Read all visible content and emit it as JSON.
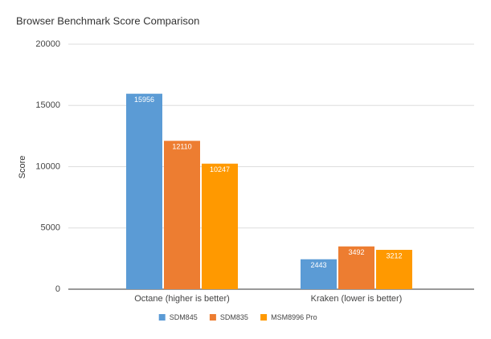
{
  "chart_data": {
    "type": "bar",
    "title": "Browser Benchmark Score Comparison",
    "y_label": "Score",
    "categories": [
      "Octane (higher is better)",
      "Kraken (lower is better)"
    ],
    "series": [
      {
        "name": "SDM845",
        "color": "#5b9bd5",
        "values": [
          15956,
          2443
        ]
      },
      {
        "name": "SDM835",
        "color": "#ed7d31",
        "values": [
          12110,
          3492
        ]
      },
      {
        "name": "MSM8996 Pro",
        "color": "#ff9900",
        "values": [
          10247,
          3212
        ]
      }
    ],
    "ylim": [
      0,
      20000
    ],
    "yticks": [
      0,
      5000,
      10000,
      15000,
      20000
    ],
    "grid": true
  }
}
